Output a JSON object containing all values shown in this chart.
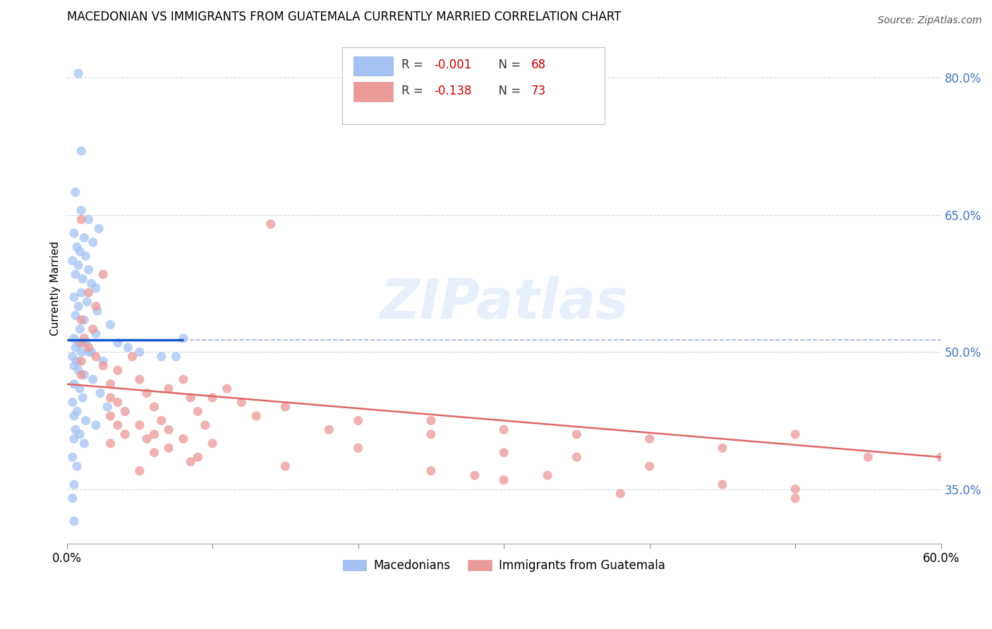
{
  "title": "MACEDONIAN VS IMMIGRANTS FROM GUATEMALA CURRENTLY MARRIED CORRELATION CHART",
  "source": "Source: ZipAtlas.com",
  "ylabel": "Currently Married",
  "right_yticks": [
    "80.0%",
    "65.0%",
    "50.0%",
    "35.0%"
  ],
  "right_ytick_vals": [
    80.0,
    65.0,
    50.0,
    35.0
  ],
  "blue_color": "#a4c2f4",
  "pink_color": "#ea9999",
  "trendline_blue": "#1155cc",
  "trendline_pink": "#e06666",
  "dashed_line_color": "#a0b4c8",
  "grid_color": "#d0d8e0",
  "watermark": "ZIPatlas",
  "blue_scatter": [
    [
      0.8,
      80.5
    ],
    [
      1.0,
      72.0
    ],
    [
      0.6,
      67.5
    ],
    [
      1.0,
      65.5
    ],
    [
      1.5,
      64.5
    ],
    [
      2.2,
      63.5
    ],
    [
      0.5,
      63.0
    ],
    [
      1.2,
      62.5
    ],
    [
      1.8,
      62.0
    ],
    [
      0.7,
      61.5
    ],
    [
      0.9,
      61.0
    ],
    [
      1.3,
      60.5
    ],
    [
      0.4,
      60.0
    ],
    [
      0.8,
      59.5
    ],
    [
      1.5,
      59.0
    ],
    [
      0.6,
      58.5
    ],
    [
      1.1,
      58.0
    ],
    [
      1.7,
      57.5
    ],
    [
      2.0,
      57.0
    ],
    [
      1.0,
      56.5
    ],
    [
      0.5,
      56.0
    ],
    [
      1.4,
      55.5
    ],
    [
      0.8,
      55.0
    ],
    [
      2.1,
      54.5
    ],
    [
      0.6,
      54.0
    ],
    [
      1.2,
      53.5
    ],
    [
      3.0,
      53.0
    ],
    [
      0.9,
      52.5
    ],
    [
      2.0,
      52.0
    ],
    [
      0.5,
      51.5
    ],
    [
      0.8,
      51.0
    ],
    [
      1.3,
      51.0
    ],
    [
      0.6,
      50.5
    ],
    [
      1.7,
      50.0
    ],
    [
      1.0,
      50.0
    ],
    [
      1.5,
      50.0
    ],
    [
      0.4,
      49.5
    ],
    [
      0.7,
      49.0
    ],
    [
      2.5,
      49.0
    ],
    [
      0.5,
      48.5
    ],
    [
      0.8,
      48.0
    ],
    [
      1.2,
      47.5
    ],
    [
      1.8,
      47.0
    ],
    [
      0.5,
      46.5
    ],
    [
      0.9,
      46.0
    ],
    [
      2.3,
      45.5
    ],
    [
      1.1,
      45.0
    ],
    [
      0.4,
      44.5
    ],
    [
      2.8,
      44.0
    ],
    [
      0.7,
      43.5
    ],
    [
      0.5,
      43.0
    ],
    [
      1.3,
      42.5
    ],
    [
      2.0,
      42.0
    ],
    [
      0.6,
      41.5
    ],
    [
      0.9,
      41.0
    ],
    [
      0.5,
      40.5
    ],
    [
      1.2,
      40.0
    ],
    [
      0.4,
      38.5
    ],
    [
      0.7,
      37.5
    ],
    [
      0.5,
      35.5
    ],
    [
      0.4,
      34.0
    ],
    [
      0.5,
      31.5
    ],
    [
      3.5,
      51.0
    ],
    [
      4.2,
      50.5
    ],
    [
      5.0,
      50.0
    ],
    [
      6.5,
      49.5
    ],
    [
      7.5,
      49.5
    ],
    [
      8.0,
      51.5
    ]
  ],
  "pink_scatter": [
    [
      1.0,
      64.5
    ],
    [
      2.5,
      58.5
    ],
    [
      14.0,
      64.0
    ],
    [
      1.5,
      56.5
    ],
    [
      2.0,
      55.0
    ],
    [
      1.0,
      53.5
    ],
    [
      1.8,
      52.5
    ],
    [
      1.2,
      51.5
    ],
    [
      1.0,
      51.0
    ],
    [
      1.5,
      50.5
    ],
    [
      2.0,
      49.5
    ],
    [
      4.5,
      49.5
    ],
    [
      1.0,
      49.0
    ],
    [
      2.5,
      48.5
    ],
    [
      3.5,
      48.0
    ],
    [
      1.0,
      47.5
    ],
    [
      5.0,
      47.0
    ],
    [
      8.0,
      47.0
    ],
    [
      3.0,
      46.5
    ],
    [
      7.0,
      46.0
    ],
    [
      11.0,
      46.0
    ],
    [
      5.5,
      45.5
    ],
    [
      3.0,
      45.0
    ],
    [
      8.5,
      45.0
    ],
    [
      10.0,
      45.0
    ],
    [
      3.5,
      44.5
    ],
    [
      12.0,
      44.5
    ],
    [
      6.0,
      44.0
    ],
    [
      15.0,
      44.0
    ],
    [
      4.0,
      43.5
    ],
    [
      9.0,
      43.5
    ],
    [
      3.0,
      43.0
    ],
    [
      13.0,
      43.0
    ],
    [
      6.5,
      42.5
    ],
    [
      20.0,
      42.5
    ],
    [
      5.0,
      42.0
    ],
    [
      25.0,
      42.5
    ],
    [
      3.5,
      42.0
    ],
    [
      9.5,
      42.0
    ],
    [
      7.0,
      41.5
    ],
    [
      18.0,
      41.5
    ],
    [
      4.0,
      41.0
    ],
    [
      30.0,
      41.5
    ],
    [
      6.0,
      41.0
    ],
    [
      35.0,
      41.0
    ],
    [
      8.0,
      40.5
    ],
    [
      25.0,
      41.0
    ],
    [
      5.5,
      40.5
    ],
    [
      40.0,
      40.5
    ],
    [
      10.0,
      40.0
    ],
    [
      3.0,
      40.0
    ],
    [
      50.0,
      41.0
    ],
    [
      7.0,
      39.5
    ],
    [
      20.0,
      39.5
    ],
    [
      30.0,
      39.0
    ],
    [
      6.0,
      39.0
    ],
    [
      45.0,
      39.5
    ],
    [
      9.0,
      38.5
    ],
    [
      35.0,
      38.5
    ],
    [
      8.5,
      38.0
    ],
    [
      55.0,
      38.5
    ],
    [
      15.0,
      37.5
    ],
    [
      40.0,
      37.5
    ],
    [
      5.0,
      37.0
    ],
    [
      25.0,
      37.0
    ],
    [
      28.0,
      36.5
    ],
    [
      33.0,
      36.5
    ],
    [
      30.0,
      36.0
    ],
    [
      50.0,
      35.0
    ],
    [
      45.0,
      35.5
    ],
    [
      38.0,
      34.5
    ],
    [
      50.0,
      34.0
    ],
    [
      60.0,
      38.5
    ]
  ],
  "xlim_min": 0.0,
  "xlim_max": 60.0,
  "ylim_min": 29.0,
  "ylim_max": 85.0,
  "blue_trendline_x": [
    0.0,
    8.0
  ],
  "blue_trendline_y": [
    51.3,
    51.3
  ],
  "dashed_line_x": [
    8.0,
    60.0
  ],
  "dashed_line_y": [
    51.3,
    51.3
  ],
  "pink_trendline_x": [
    0.0,
    60.0
  ],
  "pink_trendline_y": [
    46.5,
    38.5
  ]
}
